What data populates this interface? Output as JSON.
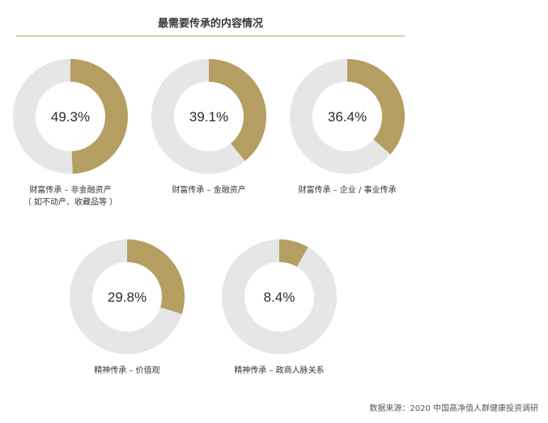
{
  "chart_data": {
    "type": "pie",
    "title": "最需要传承的内容情况",
    "unit": "%",
    "series": [
      {
        "label_lines": [
          "财富传承 – 非金融资产",
          "（ 如不动产、收藏品等 ）"
        ],
        "value": 49.3,
        "value_label": "49.3%"
      },
      {
        "label_lines": [
          "财富传承 – 金融资产"
        ],
        "value": 39.1,
        "value_label": "39.1%"
      },
      {
        "label_lines": [
          "财富传承 – 企业 / 事业传承"
        ],
        "value": 36.4,
        "value_label": "36.4%"
      },
      {
        "label_lines": [
          "精神传承 – 价值观"
        ],
        "value": 29.8,
        "value_label": "29.8%"
      },
      {
        "label_lines": [
          "精神传承 – 政商人脉关系"
        ],
        "value": 8.4,
        "value_label": "8.4%"
      }
    ],
    "colors": {
      "filled": "#b59e62",
      "remainder": "#e6e6e6"
    }
  },
  "source_note": "数据来源：2020 中国高净值人群健康投资调研"
}
